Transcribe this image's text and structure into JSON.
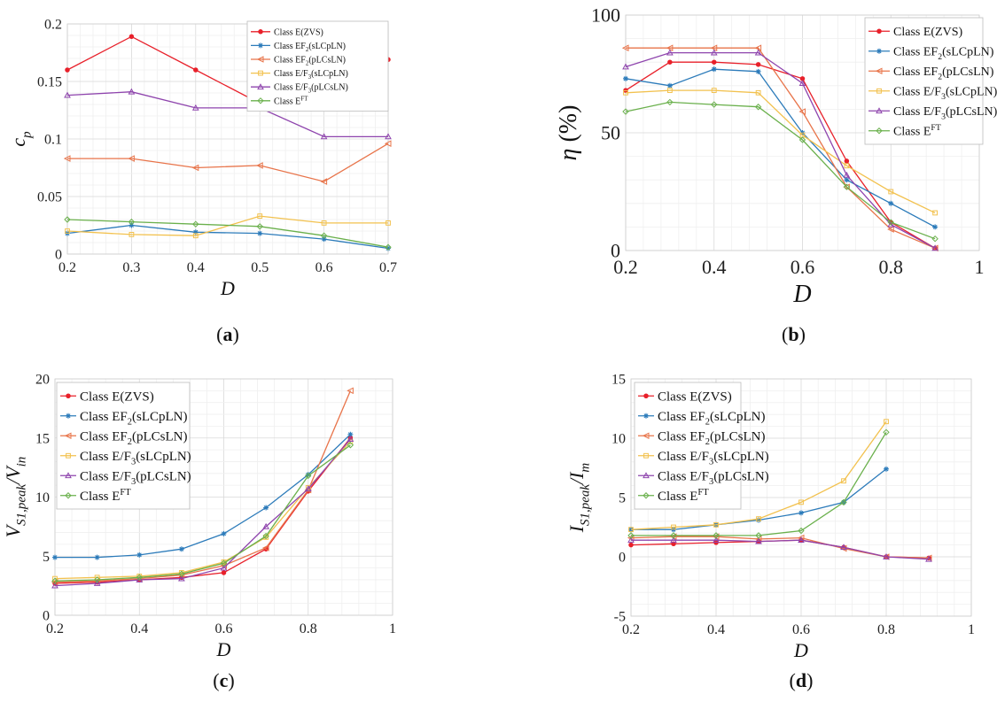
{
  "panel_labels": [
    "(a)",
    "(b)",
    "(c)",
    "(d)"
  ],
  "series_colors": [
    "#e8202a",
    "#2c7bba",
    "#e8744a",
    "#f2c14e",
    "#8e44ad",
    "#6ab04c"
  ],
  "series_markers": [
    "dot",
    "star",
    "tri-left",
    "square",
    "tri-up",
    "diamond"
  ],
  "chart_data": [
    {
      "type": "line",
      "panel": "(a)",
      "xlabel": "D",
      "ylabel": "c",
      "ylabel_sub": "p",
      "xlim": [
        0.2,
        0.7
      ],
      "ylim": [
        0,
        0.2
      ],
      "xticks": [
        "0.2",
        "0.3",
        "0.4",
        "0.5",
        "0.6",
        "0.7"
      ],
      "yticks": [
        "0",
        "0.05",
        "0.1",
        "0.15",
        "0.2"
      ],
      "legend_position": "top-right",
      "series": [
        {
          "name": "Class E(ZVS)",
          "x": [
            0.2,
            0.3,
            0.4,
            0.5,
            0.6,
            0.7
          ],
          "y": [
            0.16,
            0.189,
            0.16,
            0.131,
            0.13,
            0.169
          ]
        },
        {
          "name": "Class EF2(sLCpLN)",
          "x": [
            0.2,
            0.3,
            0.4,
            0.5,
            0.6,
            0.7
          ],
          "y": [
            0.018,
            0.025,
            0.019,
            0.018,
            0.013,
            0.005
          ]
        },
        {
          "name": "Class EF2(pLCsLN)",
          "x": [
            0.2,
            0.3,
            0.4,
            0.5,
            0.6,
            0.7
          ],
          "y": [
            0.083,
            0.083,
            0.075,
            0.077,
            0.063,
            0.096
          ]
        },
        {
          "name": "Class E/F3(sLCpLN)",
          "x": [
            0.2,
            0.3,
            0.4,
            0.5,
            0.6,
            0.7
          ],
          "y": [
            0.02,
            0.017,
            0.016,
            0.033,
            0.027,
            0.027
          ]
        },
        {
          "name": "Class E/F3(pLCsLN)",
          "x": [
            0.2,
            0.3,
            0.4,
            0.5,
            0.6,
            0.7
          ],
          "y": [
            0.138,
            0.141,
            0.127,
            0.127,
            0.102,
            0.102
          ]
        },
        {
          "name": "Class EFT",
          "x": [
            0.2,
            0.3,
            0.4,
            0.5,
            0.6,
            0.7
          ],
          "y": [
            0.03,
            0.028,
            0.026,
            0.024,
            0.016,
            0.006
          ]
        }
      ]
    },
    {
      "type": "line",
      "panel": "(b)",
      "xlabel": "D",
      "ylabel": "η (%)",
      "xlim": [
        0.2,
        1
      ],
      "ylim": [
        0,
        100
      ],
      "xticks": [
        "0.2",
        "0.4",
        "0.6",
        "0.8",
        "1"
      ],
      "yticks": [
        "0",
        "50",
        "100"
      ],
      "legend_position": "top-right",
      "series": [
        {
          "name": "Class E(ZVS)",
          "x": [
            0.2,
            0.3,
            0.4,
            0.5,
            0.6,
            0.7,
            0.8,
            0.9
          ],
          "y": [
            68,
            80,
            80,
            79,
            73,
            38,
            12,
            1
          ]
        },
        {
          "name": "Class EF2(sLCpLN)",
          "x": [
            0.2,
            0.3,
            0.4,
            0.5,
            0.6,
            0.7,
            0.8,
            0.9
          ],
          "y": [
            73,
            70,
            77,
            76,
            50,
            30,
            20,
            10
          ]
        },
        {
          "name": "Class EF2(pLCsLN)",
          "x": [
            0.2,
            0.3,
            0.4,
            0.5,
            0.6,
            0.7,
            0.8,
            0.9
          ],
          "y": [
            86,
            86,
            86,
            86,
            59,
            27,
            9,
            1
          ]
        },
        {
          "name": "Class E/F3(sLCpLN)",
          "x": [
            0.2,
            0.3,
            0.4,
            0.5,
            0.6,
            0.7,
            0.8,
            0.9
          ],
          "y": [
            67,
            68,
            68,
            67,
            49,
            36,
            25,
            16
          ]
        },
        {
          "name": "Class E/F3(pLCsLN)",
          "x": [
            0.2,
            0.3,
            0.4,
            0.5,
            0.6,
            0.7,
            0.8,
            0.9
          ],
          "y": [
            78,
            84,
            84,
            84,
            71,
            32,
            11,
            1
          ]
        },
        {
          "name": "Class EFT",
          "x": [
            0.2,
            0.3,
            0.4,
            0.5,
            0.6,
            0.7,
            0.8,
            0.9
          ],
          "y": [
            59,
            63,
            62,
            61,
            47,
            27,
            12,
            5
          ]
        }
      ]
    },
    {
      "type": "line",
      "panel": "(c)",
      "xlabel": "D",
      "ylabel": "V",
      "ylabel_sub": "S1,peak",
      "ylabel_mid": "/V",
      "ylabel_sub2": "in",
      "xlim": [
        0.2,
        1
      ],
      "ylim": [
        0,
        20
      ],
      "xticks": [
        "0.2",
        "0.4",
        "0.6",
        "0.8",
        "1"
      ],
      "yticks": [
        "0",
        "5",
        "10",
        "15",
        "20"
      ],
      "legend_position": "top-left",
      "series": [
        {
          "name": "Class E(ZVS)",
          "x": [
            0.2,
            0.3,
            0.4,
            0.5,
            0.6,
            0.7,
            0.8,
            0.9
          ],
          "y": [
            2.7,
            2.8,
            3.0,
            3.2,
            3.6,
            5.6,
            10.5,
            15.0
          ]
        },
        {
          "name": "Class EF2(sLCpLN)",
          "x": [
            0.2,
            0.3,
            0.4,
            0.5,
            0.6,
            0.7,
            0.8,
            0.9
          ],
          "y": [
            4.9,
            4.9,
            5.1,
            5.6,
            6.9,
            9.1,
            11.9,
            15.3
          ]
        },
        {
          "name": "Class EF2(pLCsLN)",
          "x": [
            0.2,
            0.3,
            0.4,
            0.5,
            0.6,
            0.7,
            0.8,
            0.9
          ],
          "y": [
            2.8,
            2.9,
            3.1,
            3.4,
            4.2,
            5.7,
            10.6,
            19.0
          ]
        },
        {
          "name": "Class E/F3(sLCpLN)",
          "x": [
            0.2,
            0.3,
            0.4,
            0.5,
            0.6,
            0.7,
            0.8,
            0.9
          ],
          "y": [
            3.1,
            3.2,
            3.3,
            3.6,
            4.5,
            6.6,
            10.8,
            14.7
          ]
        },
        {
          "name": "Class E/F3(pLCsLN)",
          "x": [
            0.2,
            0.3,
            0.4,
            0.5,
            0.6,
            0.7,
            0.8,
            0.9
          ],
          "y": [
            2.5,
            2.7,
            3.0,
            3.1,
            4.0,
            7.5,
            10.7,
            14.9
          ]
        },
        {
          "name": "Class EFT",
          "x": [
            0.2,
            0.3,
            0.4,
            0.5,
            0.6,
            0.7,
            0.8,
            0.9
          ],
          "y": [
            2.9,
            3.0,
            3.2,
            3.5,
            4.4,
            6.7,
            11.8,
            14.4
          ]
        }
      ]
    },
    {
      "type": "line",
      "panel": "(d)",
      "xlabel": "D",
      "ylabel": "I",
      "ylabel_sub": "S1,peak",
      "ylabel_mid": "/I",
      "ylabel_sub2": "m",
      "xlim": [
        0.2,
        1
      ],
      "ylim": [
        -5,
        15
      ],
      "xticks": [
        "0.2",
        "0.4",
        "0.6",
        "0.8",
        "1"
      ],
      "yticks": [
        "-5",
        "0",
        "5",
        "10",
        "15"
      ],
      "legend_position": "top-left",
      "series": [
        {
          "name": "Class E(ZVS)",
          "x": [
            0.2,
            0.3,
            0.4,
            0.5,
            0.6,
            0.7,
            0.8,
            0.9
          ],
          "y": [
            1.0,
            1.1,
            1.2,
            1.3,
            1.4,
            0.8,
            0.0,
            -0.1
          ]
        },
        {
          "name": "Class EF2(sLCpLN)",
          "x": [
            0.2,
            0.3,
            0.4,
            0.5,
            0.6,
            0.7,
            0.8
          ],
          "y": [
            2.3,
            2.3,
            2.7,
            3.1,
            3.7,
            4.6,
            7.4
          ]
        },
        {
          "name": "Class EF2(pLCsLN)",
          "x": [
            0.2,
            0.3,
            0.4,
            0.5,
            0.6,
            0.7,
            0.8,
            0.9
          ],
          "y": [
            1.6,
            1.7,
            1.7,
            1.5,
            1.6,
            0.7,
            0.0,
            -0.1
          ]
        },
        {
          "name": "Class E/F3(sLCpLN)",
          "x": [
            0.2,
            0.3,
            0.4,
            0.5,
            0.6,
            0.7,
            0.8
          ],
          "y": [
            2.3,
            2.5,
            2.7,
            3.2,
            4.6,
            6.4,
            11.4
          ]
        },
        {
          "name": "Class E/F3(pLCsLN)",
          "x": [
            0.2,
            0.3,
            0.4,
            0.5,
            0.6,
            0.7,
            0.8,
            0.9
          ],
          "y": [
            1.4,
            1.4,
            1.4,
            1.3,
            1.4,
            0.8,
            0.0,
            -0.2
          ]
        },
        {
          "name": "Class EFT",
          "x": [
            0.2,
            0.3,
            0.4,
            0.5,
            0.6,
            0.7,
            0.8
          ],
          "y": [
            1.8,
            1.8,
            1.8,
            1.8,
            2.2,
            4.6,
            10.5
          ]
        }
      ]
    }
  ]
}
